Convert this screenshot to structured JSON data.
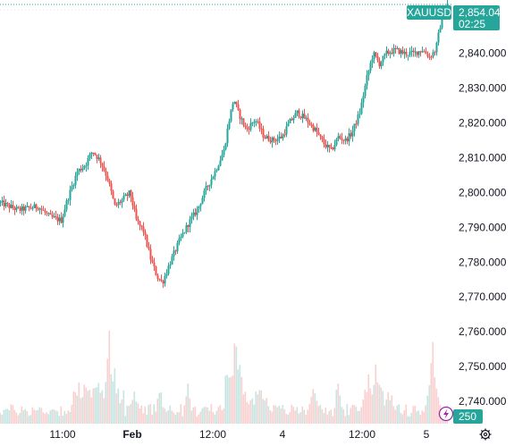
{
  "symbol": "XAUUSD",
  "last_price_label": "2,854.040",
  "countdown": "02:25",
  "volume_badge": "250",
  "settings_icon": "gear-icon",
  "alert_icon": "lightning-icon",
  "colors": {
    "up": "#26a69a",
    "down": "#ef5350",
    "badge": "#26a69a",
    "grid": "#e0e3eb",
    "alert_ring": "#9c27b0"
  },
  "chart_data": {
    "type": "candlestick",
    "title": "",
    "ylim": [
      2733,
      2858
    ],
    "y_ticks": [
      "2,840.000",
      "2,830.000",
      "2,820.000",
      "2,810.000",
      "2,800.000",
      "2,790.000",
      "2,780.000",
      "2,770.000",
      "2,760.000",
      "2,750.000",
      "2,740.000"
    ],
    "y_tick_values": [
      2840,
      2830,
      2820,
      2810,
      2800,
      2790,
      2780,
      2770,
      2760,
      2750,
      2740
    ],
    "x_ticks": [
      "11:00",
      "Feb",
      "12:00",
      "4",
      "12:00",
      "5"
    ],
    "x_ticks_bold": [
      false,
      true,
      false,
      false,
      false,
      false
    ],
    "x_tick_positions": [
      70,
      148,
      238,
      316,
      405,
      477
    ],
    "last_price": 2854.04,
    "price_path": [
      [
        0,
        2797
      ],
      [
        20,
        2795
      ],
      [
        42,
        2796
      ],
      [
        55,
        2793
      ],
      [
        68,
        2792
      ],
      [
        75,
        2798
      ],
      [
        86,
        2806
      ],
      [
        95,
        2808
      ],
      [
        103,
        2812
      ],
      [
        112,
        2809
      ],
      [
        120,
        2804
      ],
      [
        128,
        2796
      ],
      [
        137,
        2798
      ],
      [
        145,
        2800
      ],
      [
        152,
        2792
      ],
      [
        160,
        2789
      ],
      [
        168,
        2781
      ],
      [
        175,
        2776
      ],
      [
        181,
        2774
      ],
      [
        190,
        2780
      ],
      [
        200,
        2786
      ],
      [
        210,
        2791
      ],
      [
        220,
        2795
      ],
      [
        230,
        2801
      ],
      [
        240,
        2806
      ],
      [
        250,
        2812
      ],
      [
        256,
        2821
      ],
      [
        261,
        2827
      ],
      [
        266,
        2823
      ],
      [
        275,
        2818
      ],
      [
        285,
        2821
      ],
      [
        295,
        2816
      ],
      [
        305,
        2815
      ],
      [
        315,
        2816
      ],
      [
        323,
        2820
      ],
      [
        332,
        2823
      ],
      [
        342,
        2821
      ],
      [
        352,
        2818
      ],
      [
        362,
        2814
      ],
      [
        370,
        2812
      ],
      [
        378,
        2816
      ],
      [
        386,
        2815
      ],
      [
        393,
        2817
      ],
      [
        402,
        2823
      ],
      [
        410,
        2833
      ],
      [
        417,
        2840
      ],
      [
        424,
        2837
      ],
      [
        432,
        2840
      ],
      [
        442,
        2841
      ],
      [
        452,
        2840
      ],
      [
        462,
        2840
      ],
      [
        472,
        2841
      ],
      [
        480,
        2839
      ],
      [
        487,
        2841
      ],
      [
        492,
        2848
      ],
      [
        497,
        2852
      ],
      [
        500,
        2854.04
      ]
    ]
  }
}
